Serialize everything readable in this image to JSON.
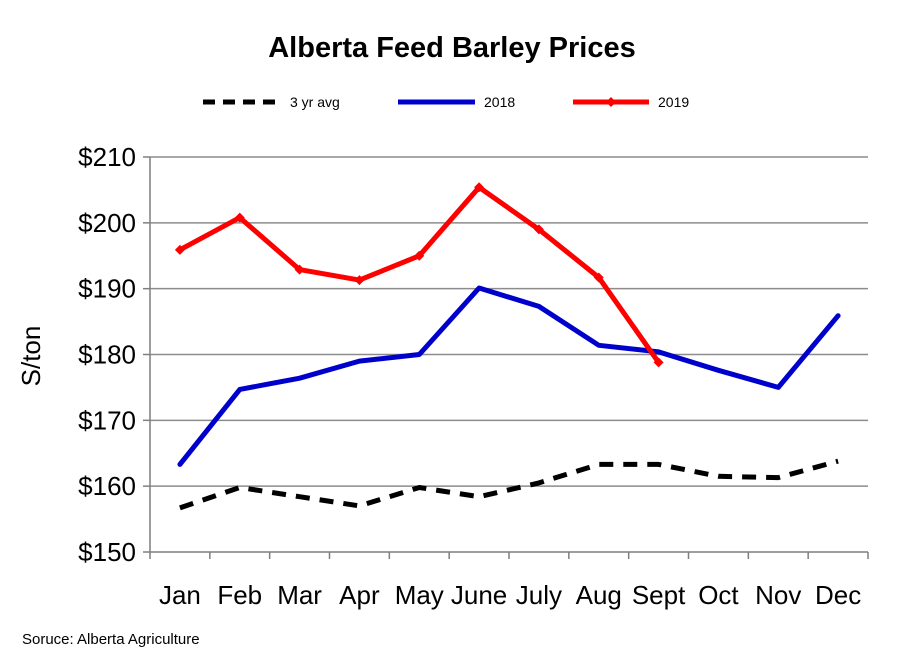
{
  "chart_data": {
    "type": "line",
    "title": "Alberta Feed Barley Prices",
    "xlabel": "",
    "ylabel": "S/ton",
    "categories": [
      "Jan",
      "Feb",
      "Mar",
      "Apr",
      "May",
      "June",
      "July",
      "Aug",
      "Sept",
      "Oct",
      "Nov",
      "Dec"
    ],
    "ylim": [
      150,
      210
    ],
    "yticks": [
      150,
      160,
      170,
      180,
      190,
      200,
      210
    ],
    "ytick_labels": [
      "$150",
      "$160",
      "$170",
      "$180",
      "$190",
      "$200",
      "$210"
    ],
    "grid": "horizontal",
    "legend_position": "top",
    "series": [
      {
        "name": "3 yr avg",
        "color": "#000000",
        "style": "dashed",
        "marker": "none",
        "values": [
          156.7,
          159.8,
          158.4,
          157.0,
          159.8,
          158.4,
          160.5,
          163.3,
          163.3,
          161.5,
          161.3,
          163.8
        ]
      },
      {
        "name": "2018",
        "color": "#0000CC",
        "style": "solid",
        "marker": "none",
        "values": [
          163.3,
          174.7,
          176.4,
          179.0,
          180.0,
          190.1,
          187.3,
          181.4,
          180.4,
          177.6,
          175.0,
          185.9
        ]
      },
      {
        "name": "2019",
        "color": "#FF0000",
        "style": "solid",
        "marker": "diamond",
        "values": [
          195.9,
          200.8,
          192.9,
          191.3,
          195.0,
          205.4,
          199.0,
          191.7,
          178.8,
          null,
          null,
          null
        ]
      }
    ],
    "source": "Soruce: Alberta Agriculture"
  }
}
